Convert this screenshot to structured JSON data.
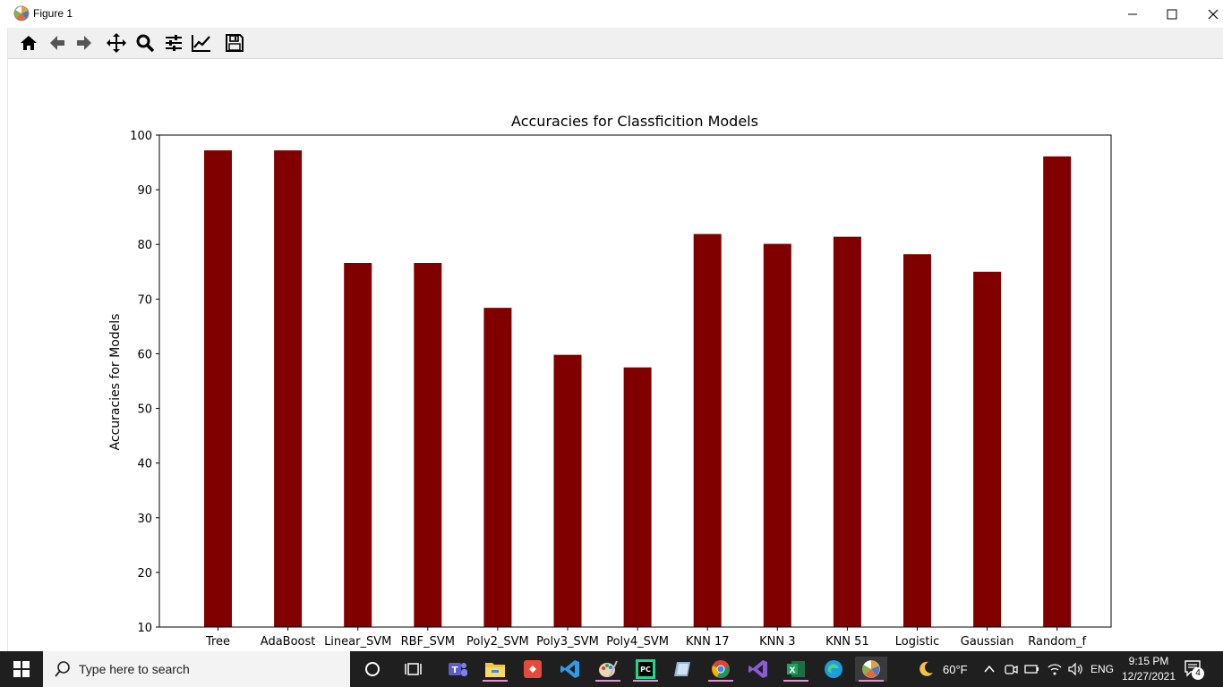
{
  "window": {
    "title": "Figure 1"
  },
  "toolbar": {
    "buttons": [
      {
        "name": "home"
      },
      {
        "name": "back"
      },
      {
        "name": "forward"
      },
      {
        "name": "pan"
      },
      {
        "name": "zoom"
      },
      {
        "name": "configure-subplots"
      },
      {
        "name": "edit-axis"
      },
      {
        "name": "save"
      }
    ]
  },
  "chart_data": {
    "type": "bar",
    "title": "Accuracies for Classficition Models",
    "xlabel": "",
    "ylabel": "Accuracies for Models",
    "ylim": [
      10,
      100
    ],
    "yticks": [
      10,
      20,
      30,
      40,
      50,
      60,
      70,
      80,
      90,
      100
    ],
    "categories": [
      "Tree",
      "AdaBoost",
      "Linear_SVM",
      "RBF_SVM",
      "Poly2_SVM",
      "Poly3_SVM",
      "Poly4_SVM",
      "KNN 17",
      "KNN 3",
      "KNN 51",
      "Logistic",
      "Gaussian",
      "Random_f"
    ],
    "values": [
      97.2,
      97.2,
      76.6,
      76.6,
      68.4,
      59.8,
      57.5,
      81.9,
      80.1,
      81.4,
      78.2,
      75.0,
      96.1
    ],
    "bar_color": "#800000",
    "grid": false
  },
  "taskbar": {
    "search_placeholder": "Type here to search",
    "weather": "60°F",
    "language": "ENG",
    "time": "9:15 PM",
    "date": "12/27/2021",
    "notification_count": "4"
  }
}
